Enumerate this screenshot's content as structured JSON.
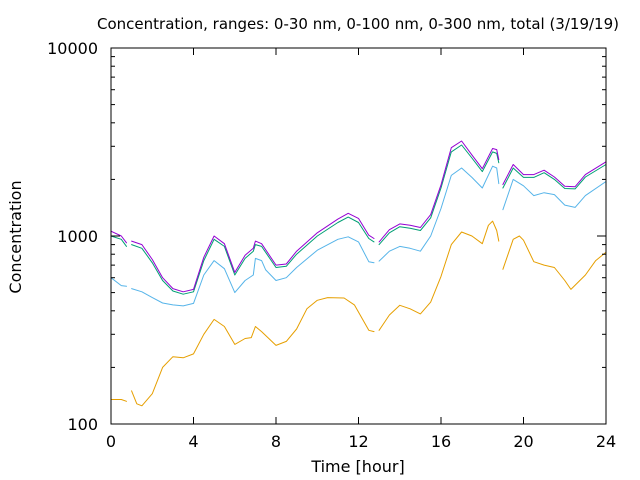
{
  "chart_data": {
    "type": "line",
    "title": "Concentration, ranges: 0-30 nm, 0-100 nm, 0-300 nm, total (3/19/19)",
    "xlabel": "Time [hour]",
    "ylabel": "Concentration",
    "x_range": [
      0,
      24
    ],
    "y_range": [
      100,
      10000
    ],
    "y_scale": "log",
    "grid": false,
    "legend": "none",
    "x_ticks": [
      0,
      4,
      8,
      12,
      16,
      20,
      24
    ],
    "x_tick_labels": [
      "0",
      "4",
      "8",
      "12",
      "16",
      "20",
      "24"
    ],
    "y_ticks": [
      100,
      1000,
      10000
    ],
    "y_tick_labels": [
      "100",
      "1000",
      "10000"
    ],
    "series": [
      {
        "color": "#e69f00",
        "segments": [
          [
            [
              0,
              135
            ],
            [
              0.5,
              135
            ],
            [
              0.75,
              132
            ]
          ],
          [
            [
              1,
              150
            ],
            [
              1.25,
              128
            ],
            [
              1.5,
              125
            ],
            [
              2,
              145
            ],
            [
              2.5,
              200
            ],
            [
              3,
              228
            ],
            [
              3.5,
              225
            ],
            [
              4,
              236
            ],
            [
              4.5,
              300
            ],
            [
              5,
              360
            ],
            [
              5.5,
              330
            ],
            [
              6,
              265
            ],
            [
              6.5,
              285
            ],
            [
              6.8,
              288
            ],
            [
              7,
              330
            ],
            [
              7.3,
              310
            ],
            [
              8,
              262
            ],
            [
              8.5,
              275
            ],
            [
              9,
              320
            ],
            [
              9.5,
              410
            ],
            [
              10,
              455
            ],
            [
              10.5,
              470
            ],
            [
              11.3,
              468
            ],
            [
              11.8,
              430
            ],
            [
              12.5,
              315
            ],
            [
              12.75,
              310
            ]
          ],
          [
            [
              13,
              315
            ],
            [
              13.5,
              380
            ],
            [
              14,
              428
            ],
            [
              14.5,
              410
            ],
            [
              15,
              385
            ],
            [
              15.5,
              445
            ],
            [
              16,
              610
            ],
            [
              16.5,
              900
            ],
            [
              17,
              1050
            ],
            [
              17.5,
              1000
            ],
            [
              18,
              910
            ],
            [
              18.3,
              1140
            ],
            [
              18.5,
              1200
            ],
            [
              18.7,
              1070
            ],
            [
              18.8,
              940
            ]
          ],
          [
            [
              19,
              665
            ],
            [
              19.5,
              960
            ],
            [
              19.8,
              1000
            ],
            [
              20,
              950
            ],
            [
              20.5,
              730
            ],
            [
              21,
              700
            ],
            [
              21.5,
              680
            ],
            [
              22,
              580
            ],
            [
              22.3,
              520
            ],
            [
              23,
              620
            ],
            [
              23.5,
              740
            ],
            [
              24,
              820
            ]
          ]
        ]
      },
      {
        "color": "#56b4e9",
        "segments": [
          [
            [
              0,
              600
            ],
            [
              0.5,
              545
            ],
            [
              0.75,
              540
            ]
          ],
          [
            [
              1,
              525
            ],
            [
              1.5,
              505
            ],
            [
              2,
              470
            ],
            [
              2.5,
              440
            ],
            [
              3,
              430
            ],
            [
              3.5,
              425
            ],
            [
              4,
              438
            ],
            [
              4.5,
              620
            ],
            [
              5,
              740
            ],
            [
              5.5,
              670
            ],
            [
              6,
              500
            ],
            [
              6.5,
              580
            ],
            [
              6.9,
              620
            ],
            [
              7,
              760
            ],
            [
              7.3,
              740
            ],
            [
              7.5,
              660
            ],
            [
              8,
              580
            ],
            [
              8.5,
              600
            ],
            [
              9,
              680
            ],
            [
              10,
              840
            ],
            [
              11,
              960
            ],
            [
              11.5,
              990
            ],
            [
              12,
              930
            ],
            [
              12.5,
              730
            ],
            [
              12.75,
              720
            ]
          ],
          [
            [
              13,
              735
            ],
            [
              13.5,
              830
            ],
            [
              14,
              880
            ],
            [
              14.5,
              860
            ],
            [
              15,
              830
            ],
            [
              15.5,
              1000
            ],
            [
              16,
              1400
            ],
            [
              16.5,
              2100
            ],
            [
              17,
              2300
            ],
            [
              17.5,
              2050
            ],
            [
              18,
              1800
            ],
            [
              18.5,
              2350
            ],
            [
              18.7,
              2300
            ],
            [
              18.8,
              1900
            ]
          ],
          [
            [
              19,
              1380
            ],
            [
              19.5,
              2000
            ],
            [
              20,
              1850
            ],
            [
              20.5,
              1640
            ],
            [
              21,
              1700
            ],
            [
              21.5,
              1660
            ],
            [
              22,
              1460
            ],
            [
              22.5,
              1420
            ],
            [
              23,
              1640
            ],
            [
              24,
              1950
            ]
          ]
        ]
      },
      {
        "color": "#009e73",
        "segments": [
          [
            [
              0,
              1000
            ],
            [
              0.5,
              960
            ],
            [
              0.75,
              880
            ]
          ],
          [
            [
              1,
              900
            ],
            [
              1.5,
              860
            ],
            [
              2,
              720
            ],
            [
              2.5,
              580
            ],
            [
              3,
              510
            ],
            [
              3.5,
              490
            ],
            [
              4,
              505
            ],
            [
              4.5,
              740
            ],
            [
              5,
              960
            ],
            [
              5.5,
              880
            ],
            [
              6,
              620
            ],
            [
              6.5,
              760
            ],
            [
              6.9,
              830
            ],
            [
              7,
              900
            ],
            [
              7.3,
              880
            ],
            [
              8,
              680
            ],
            [
              8.5,
              690
            ],
            [
              9,
              800
            ],
            [
              10,
              1000
            ],
            [
              11,
              1180
            ],
            [
              11.5,
              1260
            ],
            [
              12,
              1180
            ],
            [
              12.5,
              970
            ],
            [
              12.75,
              930
            ]
          ],
          [
            [
              13,
              900
            ],
            [
              13.5,
              1040
            ],
            [
              14,
              1120
            ],
            [
              14.5,
              1100
            ],
            [
              15,
              1070
            ],
            [
              15.5,
              1250
            ],
            [
              16,
              1800
            ],
            [
              16.5,
              2800
            ],
            [
              17,
              3050
            ],
            [
              17.5,
              2600
            ],
            [
              18,
              2200
            ],
            [
              18.5,
              2800
            ],
            [
              18.7,
              2750
            ],
            [
              18.8,
              2450
            ]
          ],
          [
            [
              19,
              1800
            ],
            [
              19.5,
              2300
            ],
            [
              20,
              2050
            ],
            [
              20.5,
              2050
            ],
            [
              21,
              2170
            ],
            [
              21.5,
              2000
            ],
            [
              22,
              1790
            ],
            [
              22.5,
              1780
            ],
            [
              23,
              2060
            ],
            [
              24,
              2400
            ]
          ]
        ]
      },
      {
        "color": "#9400d3",
        "segments": [
          [
            [
              0,
              1060
            ],
            [
              0.5,
              1000
            ],
            [
              0.75,
              920
            ]
          ],
          [
            [
              1,
              940
            ],
            [
              1.5,
              900
            ],
            [
              2,
              750
            ],
            [
              2.5,
              600
            ],
            [
              3,
              525
            ],
            [
              3.5,
              505
            ],
            [
              4,
              520
            ],
            [
              4.5,
              770
            ],
            [
              5,
              1000
            ],
            [
              5.5,
              910
            ],
            [
              6,
              640
            ],
            [
              6.5,
              790
            ],
            [
              6.9,
              860
            ],
            [
              7,
              940
            ],
            [
              7.3,
              910
            ],
            [
              8,
              700
            ],
            [
              8.5,
              710
            ],
            [
              9,
              830
            ],
            [
              10,
              1040
            ],
            [
              11,
              1230
            ],
            [
              11.5,
              1320
            ],
            [
              12,
              1240
            ],
            [
              12.5,
              1010
            ],
            [
              12.75,
              970
            ]
          ],
          [
            [
              13,
              930
            ],
            [
              13.5,
              1080
            ],
            [
              14,
              1160
            ],
            [
              14.5,
              1140
            ],
            [
              15,
              1110
            ],
            [
              15.5,
              1300
            ],
            [
              16,
              1870
            ],
            [
              16.5,
              2950
            ],
            [
              17,
              3200
            ],
            [
              17.5,
              2700
            ],
            [
              18,
              2280
            ],
            [
              18.5,
              2920
            ],
            [
              18.7,
              2880
            ],
            [
              18.8,
              2550
            ]
          ],
          [
            [
              19,
              1880
            ],
            [
              19.5,
              2400
            ],
            [
              20,
              2120
            ],
            [
              20.5,
              2120
            ],
            [
              21,
              2240
            ],
            [
              21.5,
              2060
            ],
            [
              22,
              1840
            ],
            [
              22.5,
              1830
            ],
            [
              23,
              2120
            ],
            [
              24,
              2480
            ]
          ]
        ]
      }
    ]
  }
}
